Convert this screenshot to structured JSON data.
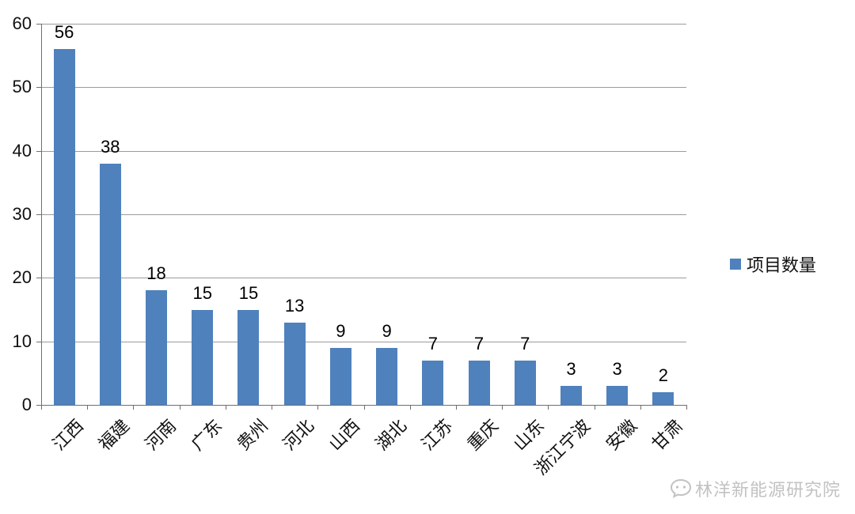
{
  "chart_data": {
    "type": "bar",
    "title": "",
    "xlabel": "",
    "ylabel": "",
    "categories": [
      "江西",
      "福建",
      "河南",
      "广东",
      "贵州",
      "河北",
      "山西",
      "湖北",
      "江苏",
      "重庆",
      "山东",
      "浙江宁波",
      "安徽",
      "甘肃"
    ],
    "values": [
      56,
      38,
      18,
      15,
      15,
      13,
      9,
      9,
      7,
      7,
      7,
      3,
      3,
      2
    ],
    "ylim": [
      0,
      60
    ],
    "ytick_step": 10,
    "grid": true,
    "bar_color": "#4f81bd",
    "legend": {
      "label": "项目数量",
      "position": "right"
    }
  },
  "watermark": {
    "text": "林洋新能源研究院"
  }
}
